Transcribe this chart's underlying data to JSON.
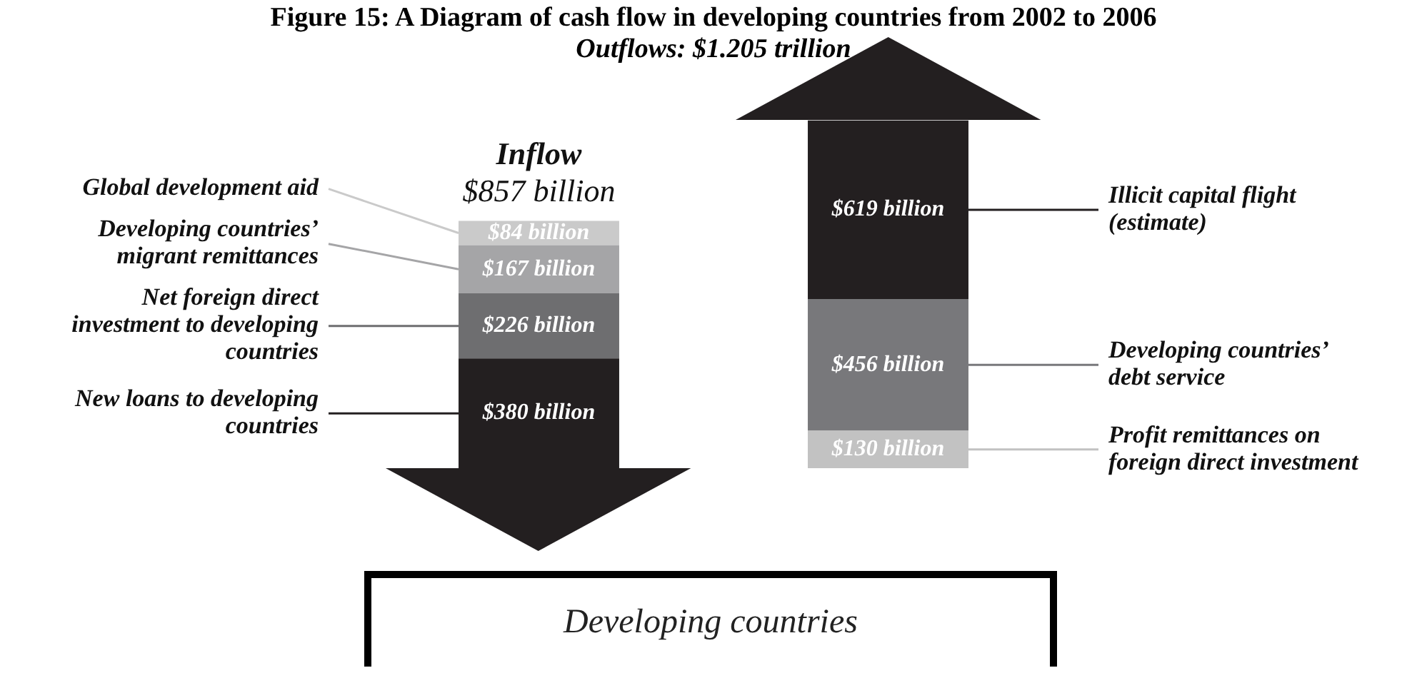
{
  "chart_data": {
    "type": "bar",
    "title": "Figure 15: A Diagram of cash flow in developing countries from 2002 to 2006",
    "subtitle": "Outflows: $1.205 trillion",
    "categories": [
      "Inflow",
      null
    ],
    "stacked": true,
    "tick_labels": false,
    "totals": [
      "$857 billion",
      null
    ],
    "series": [
      {
        "name": "New loans to developing countries",
        "color": "#231f20",
        "values": [
          380,
          null
        ],
        "value_labels": [
          "$380 billion",
          null
        ]
      },
      {
        "name": "Net foreign direct investment to developing countries",
        "color": "#6e6e70",
        "values": [
          226,
          null
        ],
        "value_labels": [
          "$226 billion",
          null
        ]
      },
      {
        "name": "Developing countries’ migrant remittances",
        "color": "#a5a5a7",
        "values": [
          167,
          null
        ],
        "value_labels": [
          "$167 billion",
          null
        ]
      },
      {
        "name": "Global development aid",
        "color": "#cacaca",
        "values": [
          84,
          null
        ],
        "value_labels": [
          "$84 billion",
          null
        ]
      },
      {
        "name": "Profit remittances on foreign direct investment",
        "color": "#c2c2c2",
        "values": [
          null,
          130
        ],
        "value_labels": [
          null,
          "$130 billion"
        ]
      },
      {
        "name": "Developing countries’ debt service",
        "color": "#78787b",
        "values": [
          null,
          456
        ],
        "value_labels": [
          null,
          "$456 billion"
        ]
      },
      {
        "name": "Illicit capital flight (estimate)",
        "color": "#231f20",
        "values": [
          null,
          619
        ],
        "value_labels": [
          null,
          "$619 billion"
        ]
      }
    ],
    "annotations": [
      "Developing countries"
    ]
  }
}
